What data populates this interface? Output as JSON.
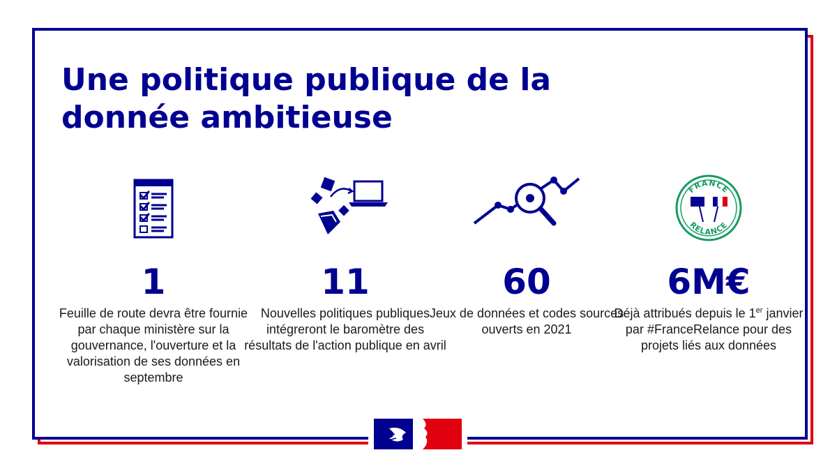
{
  "title": "Une politique publique de la donnée ambitieuse",
  "colors": {
    "blue": "#000091",
    "red": "#e1000f",
    "green": "#169b62"
  },
  "stats": [
    {
      "value": "1",
      "icon": "checklist-icon",
      "text": "Feuille de route devra être fournie par chaque ministère sur la gouvernance, l'ouverture et la valorisation de ses données en septembre"
    },
    {
      "value": "11",
      "icon": "data-transfer-laptop-icon",
      "text": "Nouvelles politiques publiques intégreront le baromètre des résultats de l'action publique en avril"
    },
    {
      "value": "60",
      "icon": "line-chart-magnifier-icon",
      "text": "Jeux de données et codes sources ouverts en 2021"
    },
    {
      "value": "6M€",
      "icon": "france-relance-badge-icon",
      "text_pre": "Déjà attribués depuis le 1",
      "text_sup": "er",
      "text_post": " janvier par #FranceRelance pour des projets liés aux données"
    }
  ],
  "badge": {
    "top_text": "FRANCE",
    "bottom_text": "RELANCE"
  },
  "footer_logo": "marianne-logo"
}
